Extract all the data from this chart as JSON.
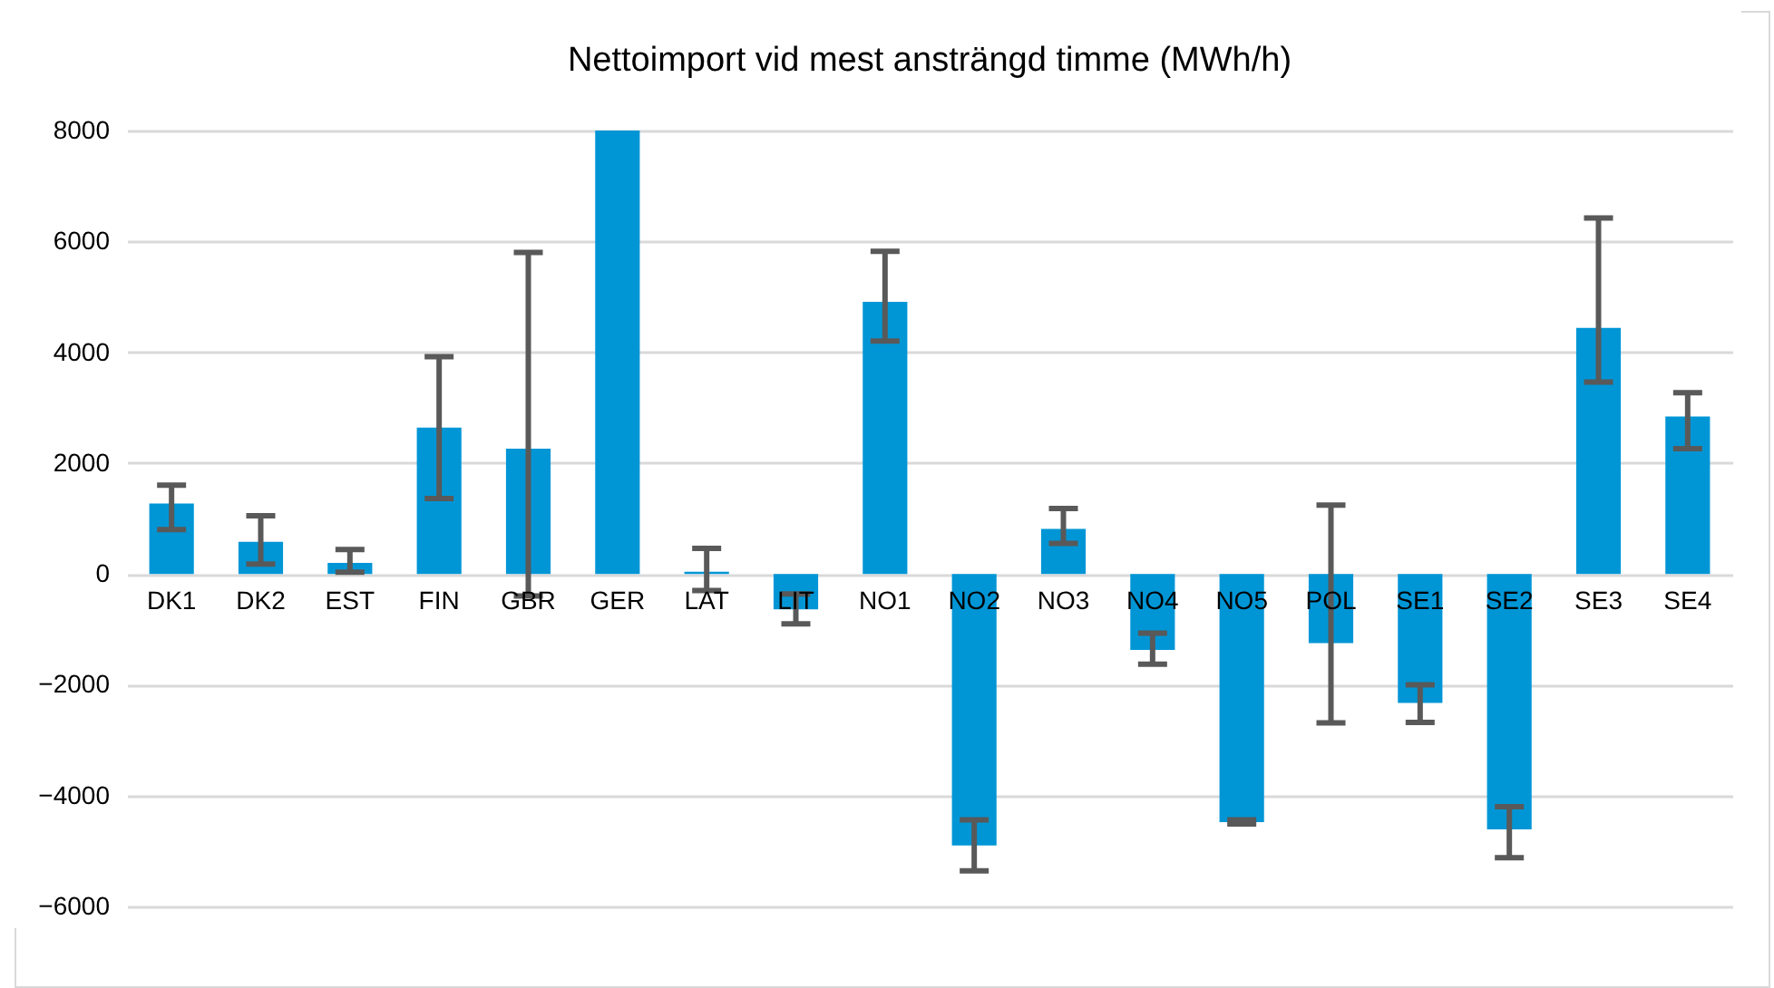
{
  "chart_data": {
    "type": "bar",
    "title": "Nettoimport vid mest ansträngd timme (MWh/h)",
    "categories": [
      "DK1",
      "DK2",
      "EST",
      "FIN",
      "GBR",
      "GER",
      "LAT",
      "LIT",
      "NO1",
      "NO2",
      "NO3",
      "NO4",
      "NO5",
      "POL",
      "SE1",
      "SE2",
      "SE3",
      "SE4"
    ],
    "values": [
      1270,
      580,
      200,
      2640,
      2260,
      8000,
      40,
      -640,
      4910,
      -4900,
      810,
      -1370,
      -4480,
      -1250,
      -2330,
      -4610,
      4440,
      2840
    ],
    "errors": [
      [
        800,
        1600
      ],
      [
        180,
        1050
      ],
      [
        30,
        440
      ],
      [
        1360,
        3920
      ],
      [
        -400,
        5800
      ],
      null,
      [
        -300,
        460
      ],
      [
        -900,
        -360
      ],
      [
        4200,
        5820
      ],
      [
        -5360,
        -4440
      ],
      [
        550,
        1180
      ],
      [
        -1630,
        -1070
      ],
      [
        -4510,
        -4440
      ],
      [
        -2690,
        1240
      ],
      [
        -2680,
        -2000
      ],
      [
        -5120,
        -4200
      ],
      [
        3460,
        6420
      ],
      [
        2260,
        3270
      ]
    ],
    "color": "#0096d6",
    "ylim": [
      -6000,
      8000
    ],
    "yticks": [
      -6000,
      -4000,
      -2000,
      0,
      2000,
      4000,
      6000,
      8000
    ],
    "grid": "y"
  }
}
